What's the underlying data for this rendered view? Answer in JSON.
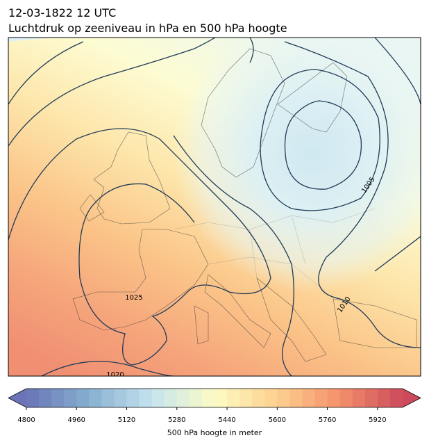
{
  "header": {
    "date": "12-03-1822 12 UTC",
    "title": "Luchtdruk op zeeniveau in hPa en 500 hPa hoogte"
  },
  "map": {
    "contour_labels": [
      1025,
      1020,
      1005,
      1010
    ]
  },
  "colorbar": {
    "lim": [
      4800,
      6000
    ],
    "ticks": [
      4800,
      4960,
      5120,
      5280,
      5440,
      5600,
      5760,
      5920
    ],
    "colors": [
      "#6a74b6",
      "#86afd0",
      "#c5e3ef",
      "#fdfcc4",
      "#fdd08e",
      "#f4906a",
      "#cc4a5c"
    ],
    "label": "500 hPa hoogte in meter"
  }
}
